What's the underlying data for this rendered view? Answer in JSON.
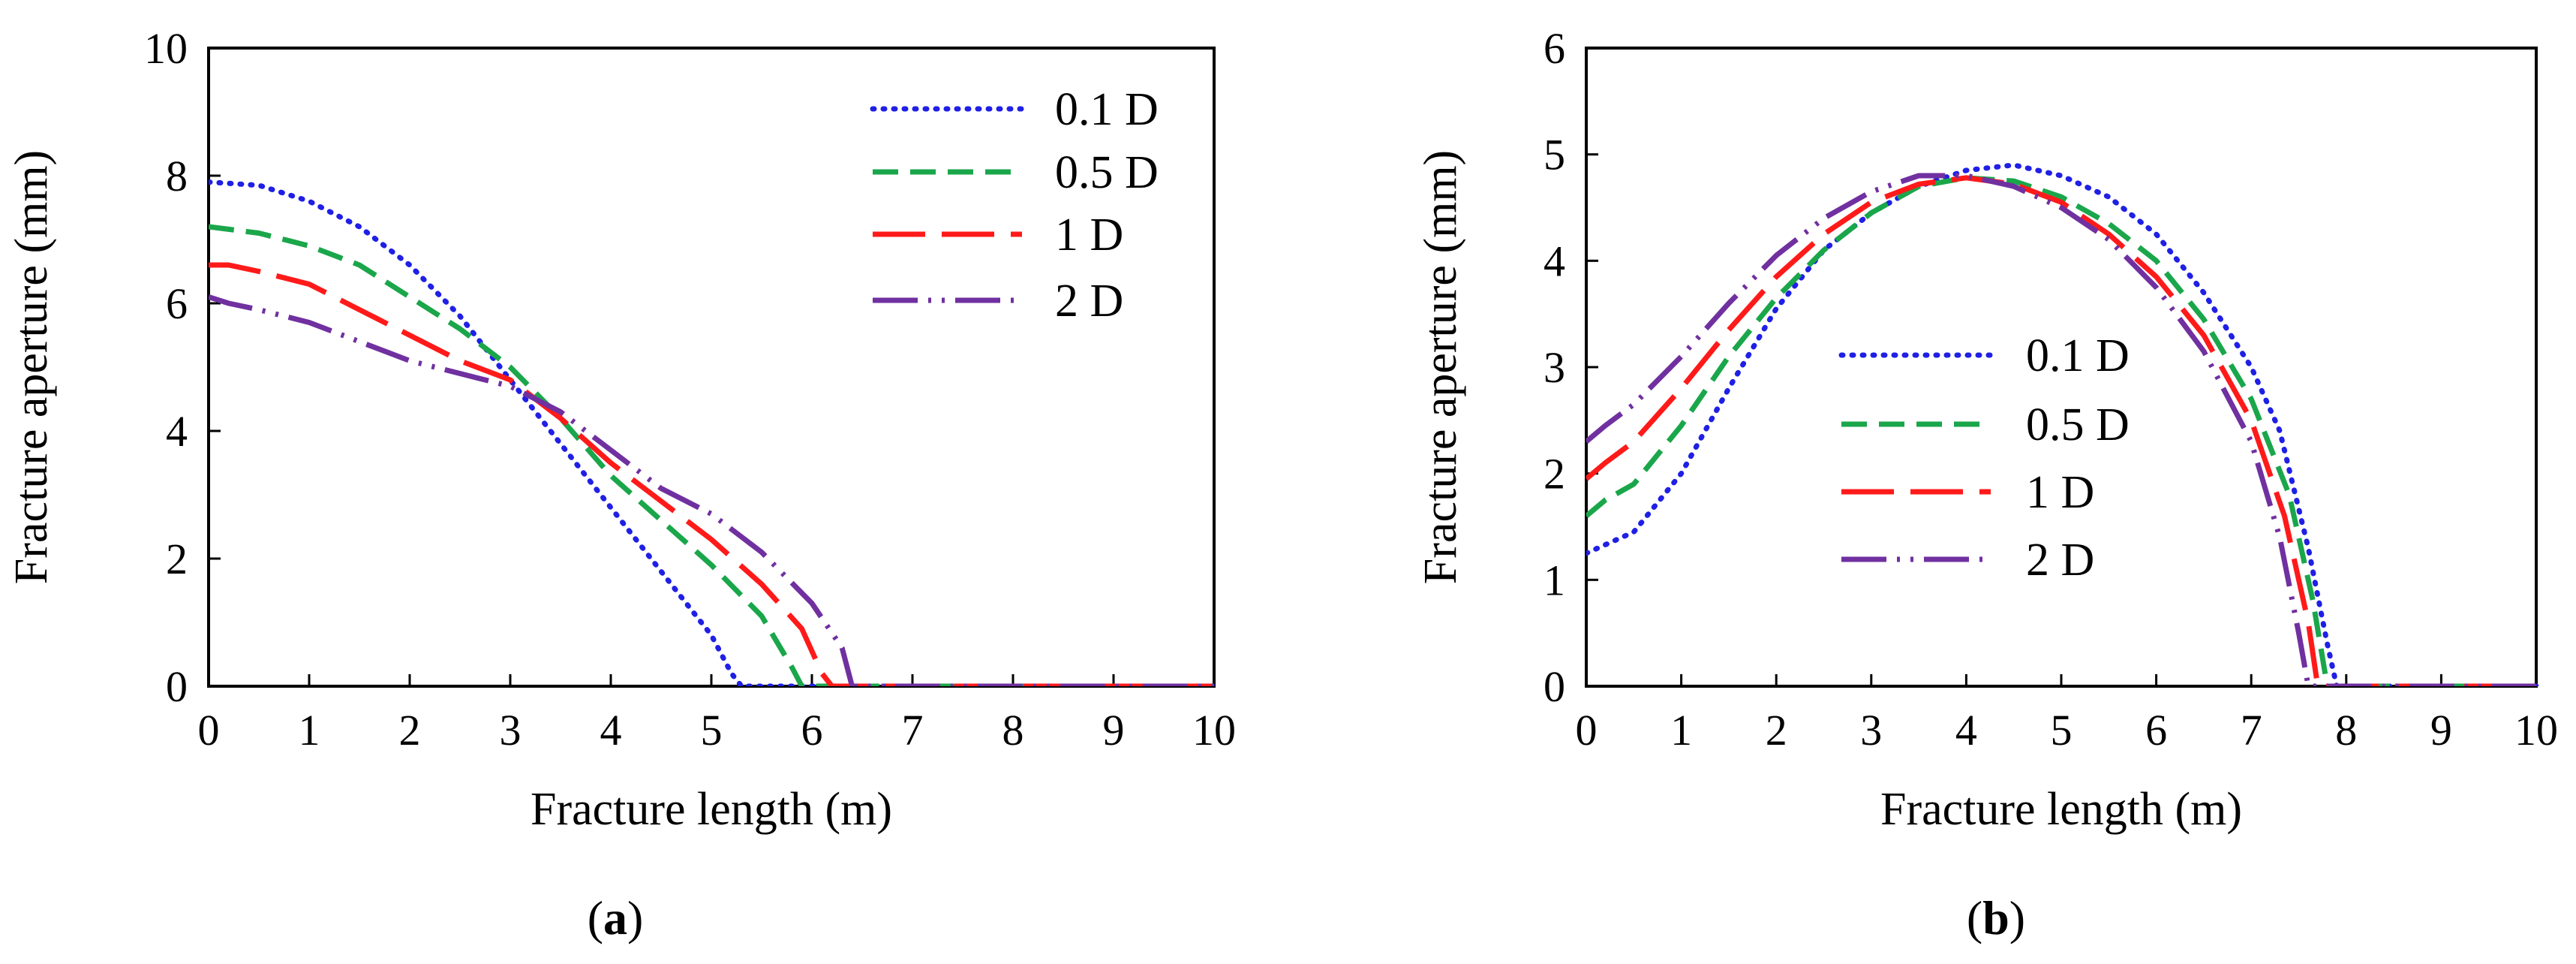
{
  "colors": {
    "series_0_1D": "#1f1fe6",
    "series_0_5D": "#1aa64a",
    "series_1D": "#ff1a1a",
    "series_2D": "#7030a0"
  },
  "chart_data": [
    {
      "type": "line",
      "panel_label_open": "(",
      "panel_label_letter": "a",
      "panel_label_close": ")",
      "xlabel": "Fracture length (m)",
      "ylabel": "Fracture aperture (mm)",
      "xlim": [
        0,
        10
      ],
      "ylim": [
        0,
        10
      ],
      "xticks": [
        "0",
        "1",
        "2",
        "3",
        "4",
        "5",
        "6",
        "7",
        "8",
        "9",
        "10"
      ],
      "yticks": [
        "0",
        "2",
        "4",
        "6",
        "8",
        "10"
      ],
      "legend_position": "top-right",
      "series": [
        {
          "name": "0.1 D",
          "style": "dotted",
          "x": [
            0,
            0.5,
            1,
            1.5,
            2,
            2.5,
            3,
            3.5,
            4,
            4.5,
            5,
            5.2,
            5.3,
            10
          ],
          "y": [
            7.9,
            7.85,
            7.6,
            7.2,
            6.6,
            5.8,
            4.8,
            3.8,
            2.8,
            1.8,
            0.8,
            0.2,
            0,
            0
          ]
        },
        {
          "name": "0.5 D",
          "style": "dashed",
          "x": [
            0,
            0.5,
            1,
            1.5,
            2,
            2.5,
            3,
            3.5,
            4,
            4.5,
            5,
            5.5,
            5.8,
            5.9,
            10
          ],
          "y": [
            7.2,
            7.1,
            6.9,
            6.6,
            6.1,
            5.6,
            5.0,
            4.2,
            3.3,
            2.6,
            1.9,
            1.1,
            0.3,
            0,
            0
          ]
        },
        {
          "name": "1 D",
          "style": "long-dash",
          "x": [
            0,
            0.2,
            0.5,
            1,
            1.5,
            2,
            2.5,
            3,
            3.5,
            4,
            4.5,
            5,
            5.5,
            5.9,
            6.1,
            6.2,
            10
          ],
          "y": [
            6.6,
            6.6,
            6.5,
            6.3,
            5.9,
            5.5,
            5.1,
            4.8,
            4.2,
            3.5,
            2.9,
            2.3,
            1.6,
            0.9,
            0.2,
            0,
            0
          ]
        },
        {
          "name": "2 D",
          "style": "dash-dot-dot",
          "x": [
            0,
            0.2,
            0.5,
            1,
            1.5,
            2,
            2.5,
            3,
            3.5,
            4,
            4.5,
            5,
            5.5,
            6,
            6.3,
            6.4,
            10
          ],
          "y": [
            6.1,
            6.0,
            5.9,
            5.7,
            5.4,
            5.1,
            4.9,
            4.7,
            4.3,
            3.7,
            3.1,
            2.7,
            2.1,
            1.3,
            0.6,
            0,
            0
          ]
        }
      ]
    },
    {
      "type": "line",
      "panel_label_open": "(",
      "panel_label_letter": "b",
      "panel_label_close": ")",
      "xlabel": "Fracture length (m)",
      "ylabel": "Fracture  aperture (mm)",
      "xlim": [
        0,
        10
      ],
      "ylim": [
        0,
        6
      ],
      "xticks": [
        "0",
        "1",
        "2",
        "3",
        "4",
        "5",
        "6",
        "7",
        "8",
        "9",
        "10"
      ],
      "yticks": [
        "0",
        "1",
        "2",
        "3",
        "4",
        "5",
        "6"
      ],
      "legend_position": "center",
      "series": [
        {
          "name": "0.1 D",
          "style": "dotted",
          "x": [
            0,
            0.5,
            1,
            1.5,
            2,
            2.5,
            3,
            3.5,
            4,
            4.5,
            5,
            5.5,
            6,
            6.5,
            7,
            7.3,
            7.6,
            7.8,
            7.9,
            10
          ],
          "y": [
            1.25,
            1.45,
            2.0,
            2.8,
            3.55,
            4.1,
            4.45,
            4.7,
            4.85,
            4.9,
            4.8,
            4.6,
            4.25,
            3.7,
            3.0,
            2.4,
            1.3,
            0.4,
            0,
            0
          ]
        },
        {
          "name": "0.5 D",
          "style": "dashed",
          "x": [
            0,
            0.2,
            0.5,
            1,
            1.5,
            2,
            2.5,
            3,
            3.5,
            4,
            4.5,
            5,
            5.5,
            6,
            6.5,
            7,
            7.4,
            7.65,
            7.8,
            10
          ],
          "y": [
            1.6,
            1.75,
            1.9,
            2.45,
            3.1,
            3.65,
            4.1,
            4.45,
            4.7,
            4.78,
            4.75,
            4.6,
            4.35,
            4.0,
            3.45,
            2.7,
            1.8,
            0.8,
            0,
            0
          ]
        },
        {
          "name": "1 D",
          "style": "long-dash",
          "x": [
            0,
            0.2,
            0.5,
            1,
            1.5,
            2,
            2.5,
            3,
            3.5,
            4,
            4.5,
            5,
            5.5,
            6,
            6.5,
            7,
            7.35,
            7.6,
            7.7,
            10
          ],
          "y": [
            1.95,
            2.1,
            2.3,
            2.8,
            3.35,
            3.85,
            4.25,
            4.55,
            4.72,
            4.78,
            4.72,
            4.55,
            4.25,
            3.85,
            3.3,
            2.5,
            1.6,
            0.6,
            0,
            0
          ]
        },
        {
          "name": "2 D",
          "style": "dash-dot-dot",
          "x": [
            0,
            0.2,
            0.5,
            1,
            1.5,
            2,
            2.5,
            3,
            3.5,
            4,
            4.5,
            5,
            5.5,
            6,
            6.5,
            7,
            7.3,
            7.5,
            7.6,
            10
          ],
          "y": [
            2.3,
            2.45,
            2.65,
            3.1,
            3.6,
            4.05,
            4.4,
            4.65,
            4.8,
            4.8,
            4.7,
            4.5,
            4.2,
            3.75,
            3.15,
            2.3,
            1.4,
            0.5,
            0,
            0
          ]
        }
      ]
    }
  ]
}
